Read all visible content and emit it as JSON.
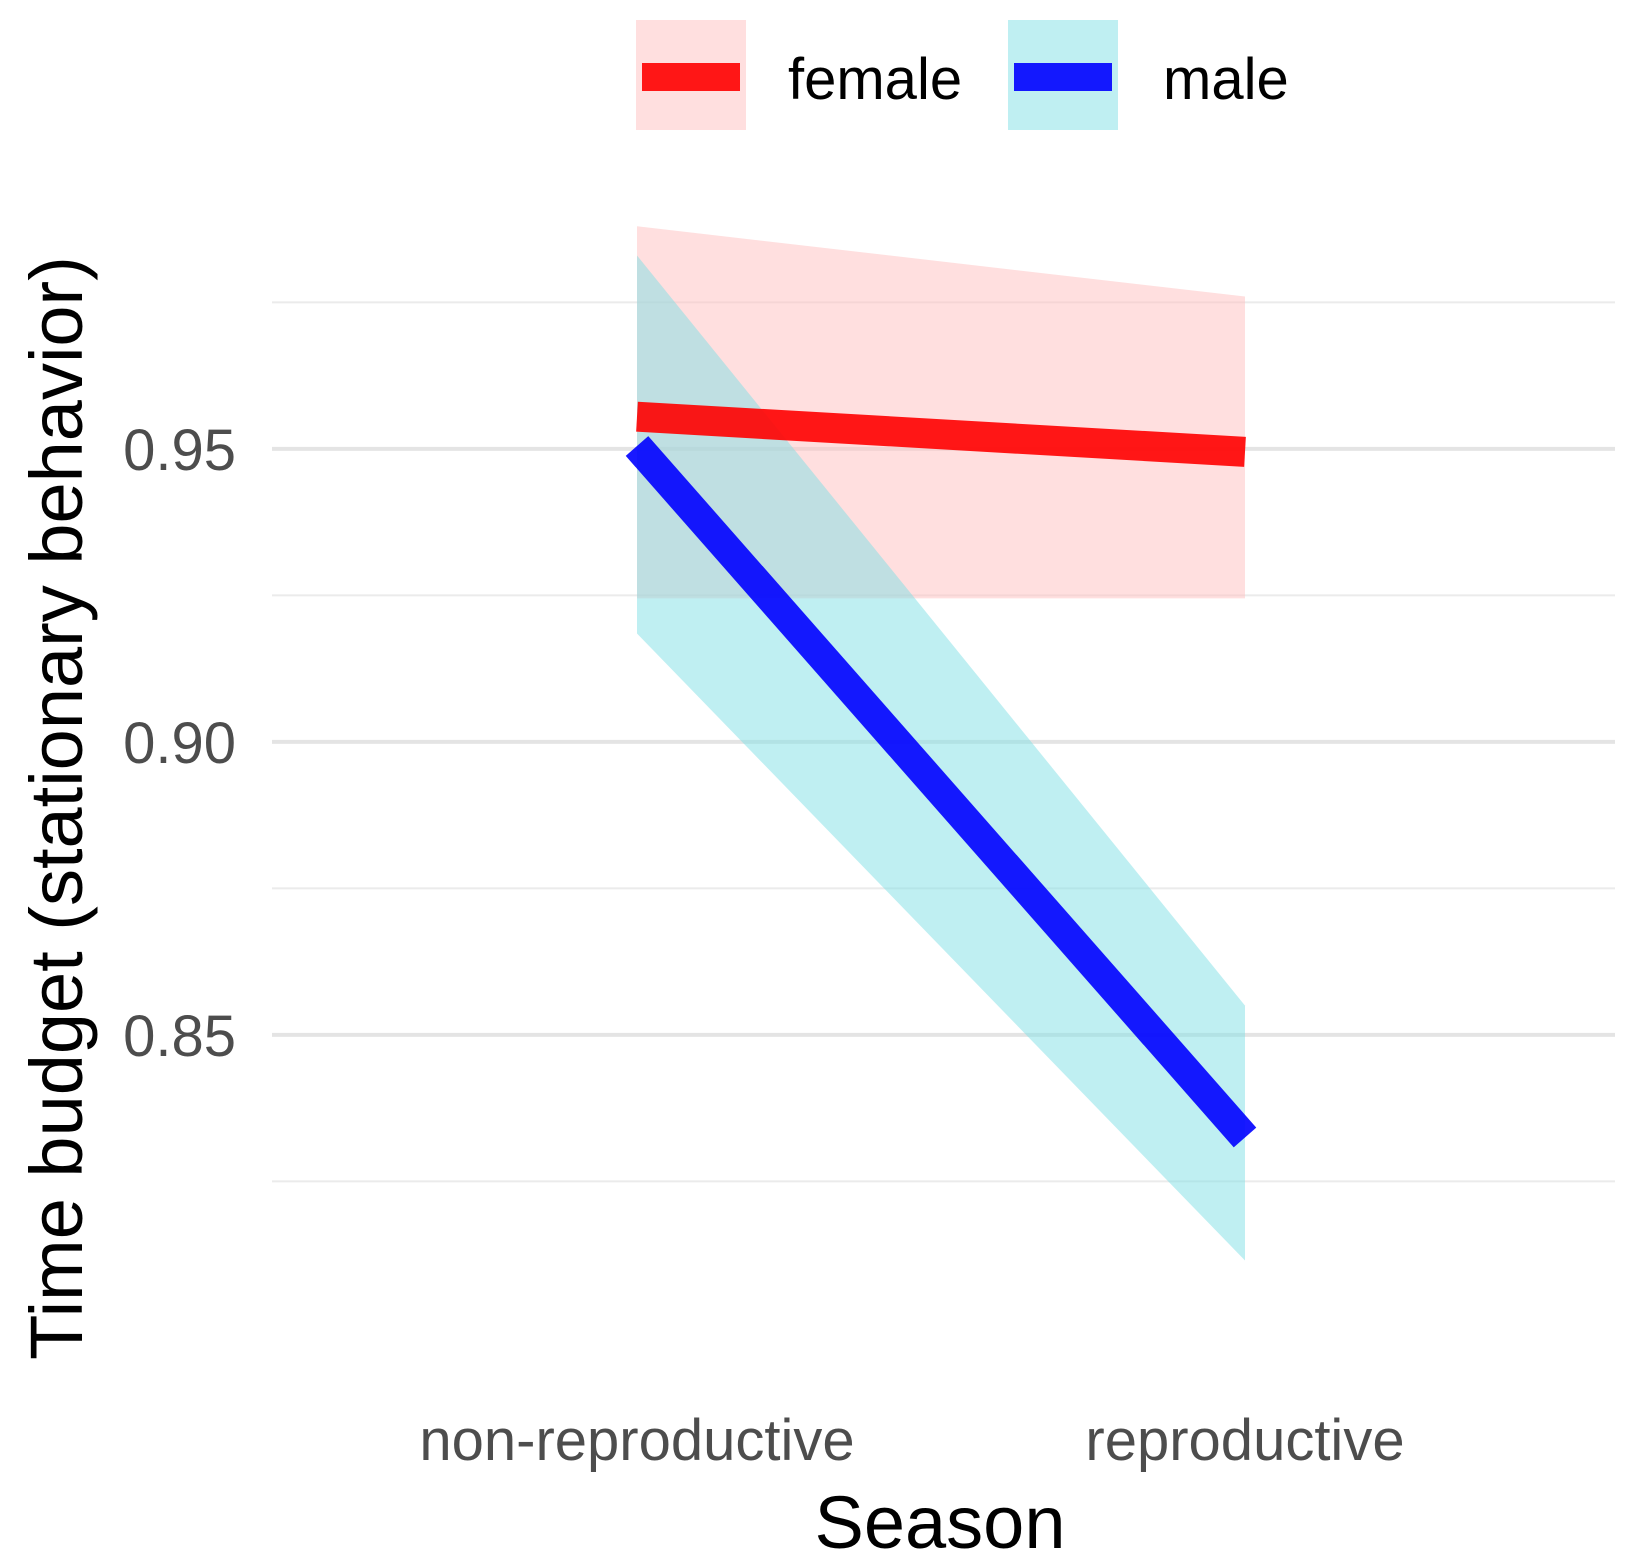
{
  "chart_data": {
    "type": "line",
    "title": "",
    "xlabel": "Season",
    "ylabel": "Time budget (stationary behavior)",
    "categories": [
      "non-reproductive",
      "reproductive"
    ],
    "ylim": [
      0.797,
      1.0
    ],
    "yticks": [
      0.85,
      0.9,
      0.95
    ],
    "y_minor_gridlines": [
      0.825,
      0.875,
      0.925,
      0.975
    ],
    "grid": true,
    "legend_position": "top",
    "series": [
      {
        "name": "female",
        "color": "#ff0000",
        "ribbon_color": "#ffc0c0",
        "values": [
          0.9555,
          0.9495
        ],
        "lower": [
          0.9245,
          0.9245
        ],
        "upper": [
          0.988,
          0.976
        ]
      },
      {
        "name": "male",
        "color": "#0000ff",
        "ribbon_color": "#7fe0e6",
        "values": [
          0.9505,
          0.8325
        ],
        "lower": [
          0.9185,
          0.8115
        ],
        "upper": [
          0.983,
          0.855
        ]
      }
    ]
  }
}
